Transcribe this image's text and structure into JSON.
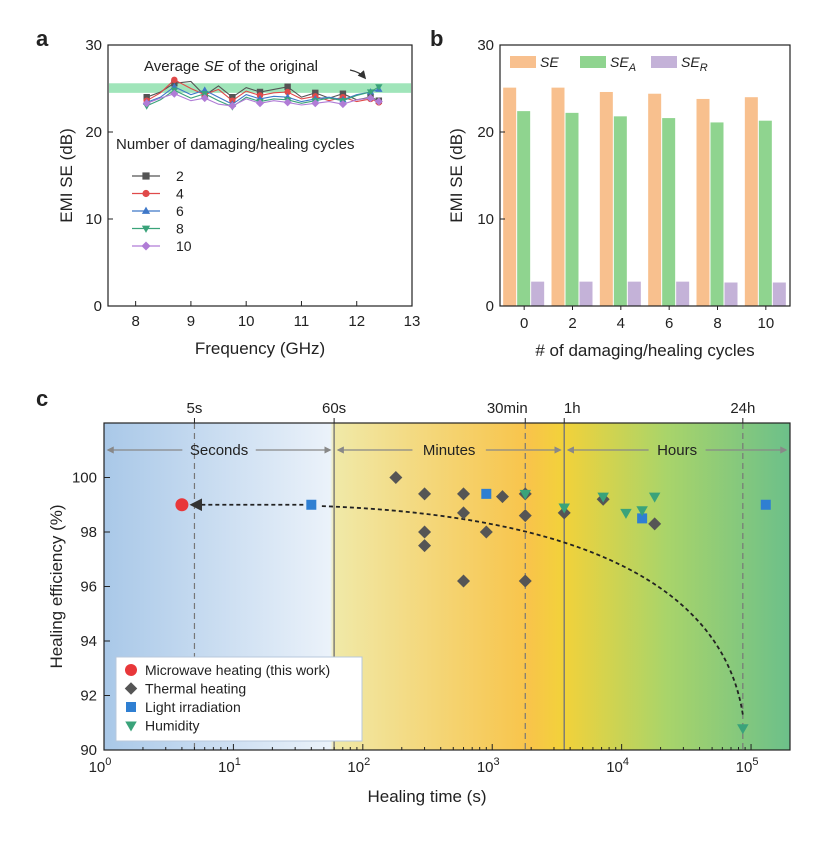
{
  "panels": {
    "a": "a",
    "b": "b",
    "c": "c"
  },
  "chart_data": [
    {
      "id": "a",
      "type": "line",
      "xlabel": "Frequency (GHz)",
      "ylabel": "EMI SE (dB)",
      "xlim": [
        7.5,
        13
      ],
      "ylim": [
        0,
        30
      ],
      "xticks": [
        8,
        9,
        10,
        11,
        12,
        13
      ],
      "yticks": [
        0,
        10,
        20,
        30
      ],
      "band": {
        "label_pre": "Average ",
        "label_it": "SE",
        "label_post": " of the original",
        "y_min": 24.5,
        "y_max": 25.6,
        "color": "#8fe0ae"
      },
      "legend_title": "Number of damaging/healing cycles",
      "series": [
        {
          "name": "2",
          "color": "#555555",
          "marker": "square",
          "x": [
            8.2,
            8.45,
            8.7,
            9.0,
            9.25,
            9.5,
            9.75,
            10.0,
            10.25,
            10.5,
            10.75,
            11.0,
            11.25,
            11.5,
            11.75,
            12.0,
            12.25,
            12.4
          ],
          "y": [
            24.0,
            24.6,
            25.6,
            25.8,
            24.2,
            25.3,
            24.0,
            25.1,
            24.6,
            24.9,
            25.2,
            24.0,
            24.5,
            23.9,
            24.4,
            23.7,
            24.0,
            23.6
          ]
        },
        {
          "name": "4",
          "color": "#e04a4a",
          "marker": "circle",
          "x": [
            8.2,
            8.45,
            8.7,
            9.0,
            9.25,
            9.5,
            9.75,
            10.0,
            10.25,
            10.5,
            10.75,
            11.0,
            11.25,
            11.5,
            11.75,
            12.0,
            12.25,
            12.4
          ],
          "y": [
            23.6,
            24.5,
            26.0,
            25.0,
            24.3,
            24.9,
            23.6,
            24.7,
            24.2,
            24.5,
            24.6,
            23.8,
            24.1,
            23.6,
            24.0,
            23.5,
            23.8,
            23.4
          ]
        },
        {
          "name": "6",
          "color": "#3f78c8",
          "marker": "triangle-up",
          "x": [
            8.2,
            8.45,
            8.7,
            9.0,
            9.25,
            9.5,
            9.75,
            10.0,
            10.25,
            10.5,
            10.75,
            11.0,
            11.25,
            11.5,
            11.75,
            12.0,
            12.25,
            12.4
          ],
          "y": [
            23.4,
            24.0,
            25.2,
            24.3,
            24.8,
            24.0,
            23.2,
            24.3,
            23.8,
            24.1,
            24.0,
            23.5,
            23.8,
            24.0,
            23.7,
            24.3,
            24.6,
            24.9
          ]
        },
        {
          "name": "8",
          "color": "#3aa37a",
          "marker": "triangle-down",
          "x": [
            8.2,
            8.45,
            8.7,
            9.0,
            9.25,
            9.5,
            9.75,
            10.0,
            10.25,
            10.5,
            10.75,
            11.0,
            11.25,
            11.5,
            11.75,
            12.0,
            12.25,
            12.4
          ],
          "y": [
            23.0,
            23.7,
            24.8,
            23.9,
            24.4,
            23.6,
            22.9,
            24.0,
            23.5,
            23.8,
            23.7,
            23.3,
            23.6,
            23.9,
            23.6,
            24.2,
            24.6,
            25.2
          ]
        },
        {
          "name": "10",
          "color": "#b07cd6",
          "marker": "diamond",
          "x": [
            8.2,
            8.45,
            8.7,
            9.0,
            9.25,
            9.5,
            9.75,
            10.0,
            10.25,
            10.5,
            10.75,
            11.0,
            11.25,
            11.5,
            11.75,
            12.0,
            12.25,
            12.4
          ],
          "y": [
            23.3,
            23.9,
            24.4,
            23.6,
            23.9,
            23.2,
            23.0,
            23.8,
            23.3,
            23.6,
            23.4,
            23.1,
            23.3,
            23.5,
            23.2,
            23.7,
            23.9,
            23.5
          ]
        }
      ]
    },
    {
      "id": "b",
      "type": "bar",
      "xlabel": "# of damaging/healing cycles",
      "ylabel": "EMI SE (dB)",
      "ylim": [
        0,
        30
      ],
      "yticks": [
        0,
        10,
        20,
        30
      ],
      "categories": [
        "0",
        "2",
        "4",
        "6",
        "8",
        "10"
      ],
      "series": [
        {
          "name": "SE",
          "sub": "",
          "color": "#f8c08e",
          "values": [
            25.1,
            25.1,
            24.6,
            24.4,
            23.8,
            24.0
          ]
        },
        {
          "name": "SE",
          "sub": "A",
          "color": "#8fd48f",
          "values": [
            22.4,
            22.2,
            21.8,
            21.6,
            21.1,
            21.3
          ]
        },
        {
          "name": "SE",
          "sub": "R",
          "color": "#c4b2d8",
          "values": [
            2.8,
            2.8,
            2.8,
            2.8,
            2.7,
            2.7
          ]
        }
      ]
    },
    {
      "id": "c",
      "type": "scatter",
      "xlabel": "Healing time (s)",
      "ylabel": "Healing efficiency (%)",
      "xscale": "log",
      "xlim": [
        1,
        200000
      ],
      "ylim": [
        90,
        102
      ],
      "xticks": [
        1,
        10,
        100,
        1000,
        10000,
        100000
      ],
      "xtick_labels": [
        [
          "10",
          "0"
        ],
        [
          "10",
          "1"
        ],
        [
          "10",
          "2"
        ],
        [
          "10",
          "3"
        ],
        [
          "10",
          "4"
        ],
        [
          "10",
          "5"
        ]
      ],
      "yticks": [
        90,
        92,
        94,
        96,
        98,
        100
      ],
      "top_ticks": [
        {
          "label": "5s",
          "x": 5,
          "dashed": true
        },
        {
          "label": "60s",
          "x": 60,
          "dashed": false
        },
        {
          "label": "30min",
          "x": 1800,
          "dashed": true
        },
        {
          "label": "1h",
          "x": 3600,
          "dashed": false
        },
        {
          "label": "24h",
          "x": 86400,
          "dashed": true
        }
      ],
      "regions": [
        {
          "label": "Seconds",
          "x0": 1,
          "x1": 60
        },
        {
          "label": "Minutes",
          "x0": 60,
          "x1": 3600
        },
        {
          "label": "Hours",
          "x0": 3600,
          "x1": 200000
        }
      ],
      "series": [
        {
          "name": "Microwave heating (this work)",
          "color": "#e8373a",
          "marker": "circle",
          "points": [
            [
              4,
              99.0
            ]
          ]
        },
        {
          "name": "Thermal heating",
          "color": "#555555",
          "marker": "diamond",
          "points": [
            [
              180,
              100.0
            ],
            [
              300,
              99.4
            ],
            [
              300,
              98.0
            ],
            [
              300,
              97.5
            ],
            [
              600,
              99.4
            ],
            [
              600,
              98.7
            ],
            [
              600,
              96.2
            ],
            [
              900,
              98.0
            ],
            [
              1200,
              99.3
            ],
            [
              1800,
              99.4
            ],
            [
              1800,
              98.6
            ],
            [
              1800,
              96.2
            ],
            [
              3600,
              98.7
            ],
            [
              7200,
              99.2
            ],
            [
              18000,
              98.3
            ]
          ]
        },
        {
          "name": "Light irradiation",
          "color": "#2f7fd2",
          "marker": "square",
          "points": [
            [
              40,
              99.0
            ],
            [
              900,
              99.4
            ],
            [
              14400,
              98.5
            ],
            [
              130000,
              99.0
            ]
          ]
        },
        {
          "name": "Humidity",
          "color": "#3aa37a",
          "marker": "triangle-down",
          "points": [
            [
              1800,
              99.4
            ],
            [
              3600,
              98.9
            ],
            [
              7200,
              99.3
            ],
            [
              10800,
              98.7
            ],
            [
              14400,
              98.8
            ],
            [
              18000,
              99.3
            ],
            [
              86400,
              90.8
            ]
          ]
        }
      ]
    }
  ]
}
